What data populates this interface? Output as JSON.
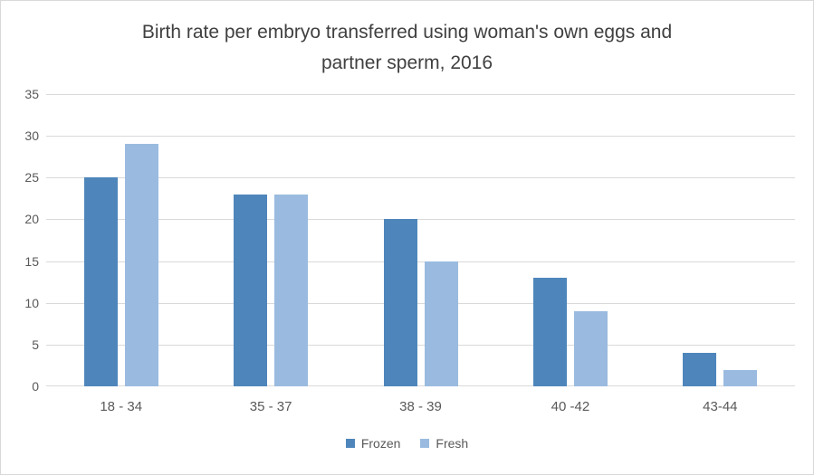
{
  "chart_data": {
    "type": "bar",
    "title_lines": [
      "Birth rate per embryo transferred using woman's own eggs and",
      "partner sperm, 2016"
    ],
    "categories": [
      "18 - 34",
      "35 - 37",
      "38 - 39",
      "40 -42",
      "43-44"
    ],
    "series": [
      {
        "name": "Frozen",
        "color": "#4E86BB",
        "values": [
          25,
          23,
          20,
          13,
          4
        ]
      },
      {
        "name": "Fresh",
        "color": "#9ABBDF",
        "values": [
          29,
          23,
          15,
          9,
          2
        ]
      }
    ],
    "xlabel": "",
    "ylabel": "",
    "ylim": [
      0,
      35
    ],
    "yticks": [
      0,
      5,
      10,
      15,
      20,
      25,
      30,
      35
    ],
    "grid": "horizontal",
    "legend_position": "bottom"
  },
  "style": {
    "background": "#FFFFFF",
    "border_color": "#D9D9D9",
    "grid_color": "#D9D9D9",
    "text_color": "#595959",
    "title_color": "#404040"
  }
}
